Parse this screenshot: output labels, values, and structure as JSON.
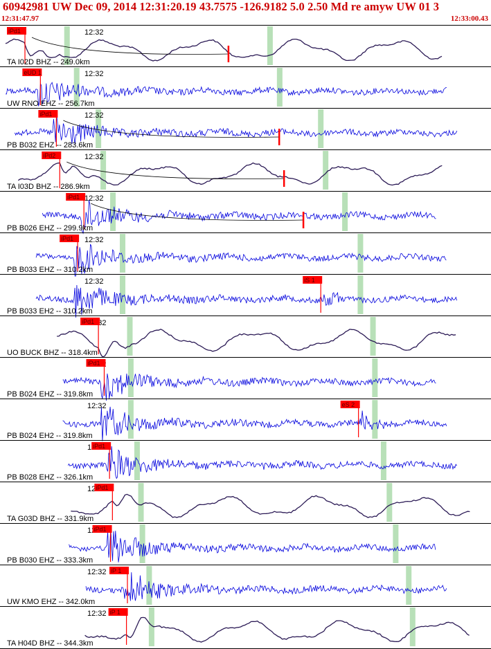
{
  "header": {
    "title": "60942981 UW Dec 09, 2014 12:31:20.19   43.7575 -126.9182  5.0 2.50 Md re amyw UW 01   3",
    "time_start": "12:31:47.97",
    "time_end": "12:33:00.43"
  },
  "colors": {
    "header_text": "#cc0000",
    "broadband": "#2b1a55",
    "short_period": "#0000dd",
    "pick": "#ff0000",
    "window": "#b8e0b8",
    "divider": "#000000"
  },
  "chart_data": {
    "type": "line",
    "title": "60942981 UW Dec 09, 2014 12:31:20.19   43.7575 -126.9182  5.0 2.50 Md re amyw UW 01   3",
    "x_range": [
      "12:31:47.97",
      "12:33:00.43"
    ],
    "series": [
      {
        "name": "TA I02D BHZ -- 249.0km",
        "kind": "broadband",
        "time_label": "12:32",
        "picks": [
          {
            "label": "iPd1",
            "at": 0.043
          }
        ],
        "onset": 0.043,
        "window": [
          0.13,
          0.55
        ],
        "amp": "low"
      },
      {
        "name": "UW RNO EHZ -- 256.7km",
        "kind": "short",
        "time_label": "12:32",
        "picks": [
          {
            "label": "eUD 1",
            "at": 0.075
          }
        ],
        "onset": 0.075,
        "window": [
          0.15,
          0.57
        ],
        "amp": "low"
      },
      {
        "name": "PB B032 EHZ -- 283.6km",
        "kind": "short",
        "time_label": "12:32",
        "picks": [
          {
            "label": "iPd1",
            "at": 0.108
          }
        ],
        "onset": 0.108,
        "window": [
          0.195,
          0.655
        ],
        "amp": "mid"
      },
      {
        "name": "TA I03D BHZ -- 286.9km",
        "kind": "broadband",
        "time_label": "12:32",
        "picks": [
          {
            "label": "iPd2",
            "at": 0.115
          }
        ],
        "onset": 0.115,
        "window": [
          0.205,
          0.665
        ],
        "amp": "low"
      },
      {
        "name": "PB B026 EHZ -- 299.9km",
        "kind": "short",
        "time_label": "12:32",
        "picks": [
          {
            "label": "iPd1",
            "at": 0.165
          }
        ],
        "onset": 0.165,
        "window": [
          0.225,
          0.705
        ],
        "amp": "mid"
      },
      {
        "name": "PB B033 EHZ -- 310.2km",
        "kind": "short",
        "time_label": "12:32",
        "picks": [
          {
            "label": "iPd1",
            "at": 0.152
          }
        ],
        "onset": 0.152,
        "window": [
          0.245,
          0.737
        ],
        "amp": "mid"
      },
      {
        "name": "PB B033 EH2 -- 310.2km",
        "kind": "short",
        "time_label": "12:32",
        "picks": [
          {
            "label": "iS 1",
            "at": 0.655
          }
        ],
        "onset": 0.152,
        "window": [
          0.245,
          0.737
        ],
        "amp": "mid",
        "s_arrival": 0.66
      },
      {
        "name": "UO BUCK BHZ -- 318.4km",
        "kind": "broadband",
        "time_label": "12:32",
        "picks": [
          {
            "label": "iPd1",
            "at": 0.195
          }
        ],
        "onset": 0.195,
        "window": [
          0.26,
          0.763
        ],
        "amp": "low"
      },
      {
        "name": "PB B024 EHZ -- 319.8km",
        "kind": "short",
        "time_label": "12:32",
        "picks": [
          {
            "label": "iPd1",
            "at": 0.207
          }
        ],
        "onset": 0.207,
        "window": [
          0.262,
          0.767
        ],
        "amp": "mid"
      },
      {
        "name": "PB B024 EH2 -- 319.8km",
        "kind": "short",
        "time_label": "12:32",
        "picks": [
          {
            "label": "eS 2",
            "at": 0.733
          }
        ],
        "onset": 0.207,
        "window": [
          0.262,
          0.767
        ],
        "amp": "mid",
        "s_arrival": 0.735
      },
      {
        "name": "PB B028 EHZ -- 326.1km",
        "kind": "short",
        "time_label": "12:32",
        "picks": [
          {
            "label": "iPd1",
            "at": 0.218
          }
        ],
        "onset": 0.218,
        "window": [
          0.275,
          0.785
        ],
        "amp": "mid"
      },
      {
        "name": "TA G03D BHZ -- 331.9km",
        "kind": "broadband",
        "time_label": "12:32",
        "picks": [
          {
            "label": "iPd1",
            "at": 0.224
          }
        ],
        "onset": 0.224,
        "window": [
          0.283,
          0.797
        ],
        "amp": "low"
      },
      {
        "name": "PB B030 EHZ -- 333.3km",
        "kind": "short",
        "time_label": "12:32",
        "picks": [
          {
            "label": "iPd1",
            "at": 0.22
          }
        ],
        "onset": 0.22,
        "window": [
          0.286,
          0.81
        ],
        "amp": "high"
      },
      {
        "name": "UW KMO EHZ -- 342.0km",
        "kind": "short",
        "time_label": "12:32",
        "picks": [
          {
            "label": "iP 1",
            "at": 0.255
          }
        ],
        "onset": 0.255,
        "window": [
          0.3,
          0.837
        ],
        "amp": "mid"
      },
      {
        "name": "TA H04D BHZ -- 344.3km",
        "kind": "broadband",
        "time_label": "12:32",
        "picks": [
          {
            "label": "iP 1",
            "at": 0.253
          }
        ],
        "onset": 0.253,
        "window": [
          0.305,
          0.845
        ],
        "amp": "low"
      }
    ]
  }
}
